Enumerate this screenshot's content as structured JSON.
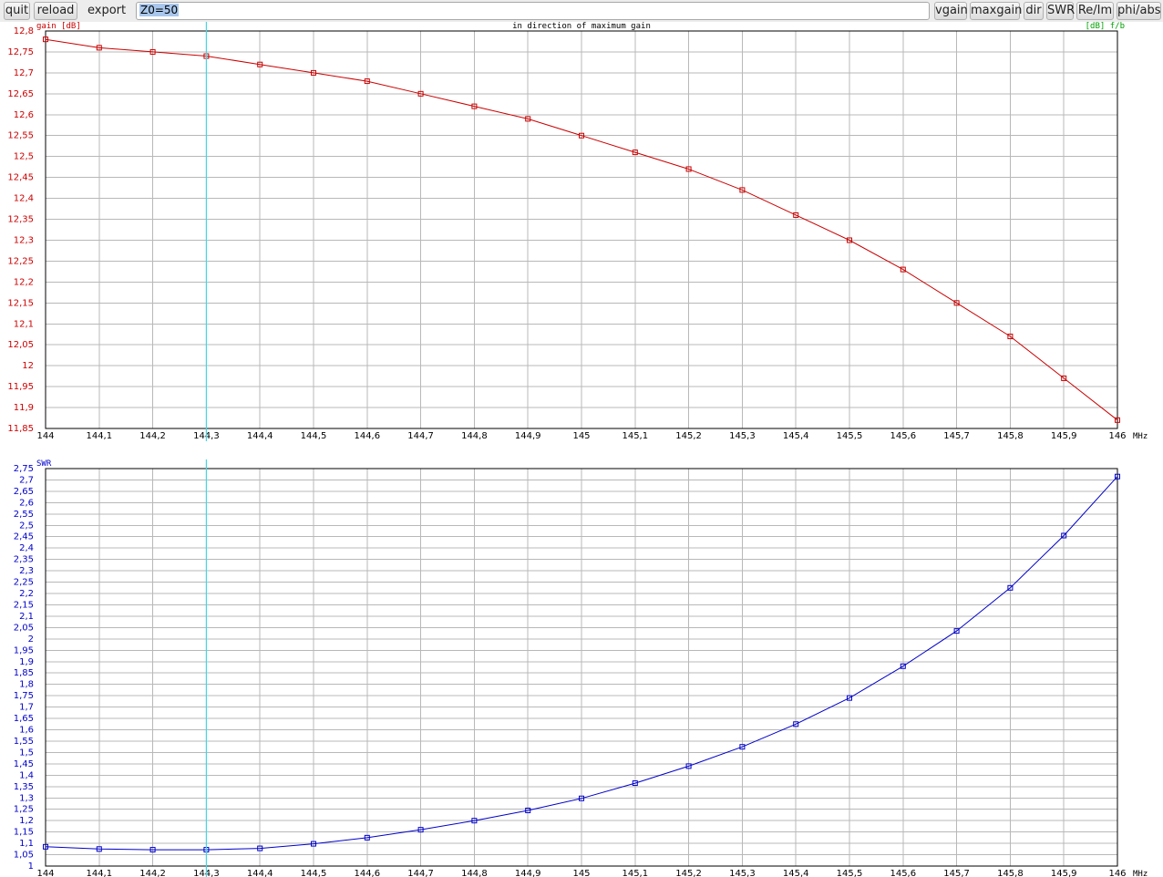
{
  "toolbar": {
    "quit_label": "quit",
    "reload_label": "reload",
    "export_label": "export",
    "z0_value": "Z0=50",
    "vgain_label": "vgain",
    "maxgain_label": "maxgain",
    "dir_label": "dir",
    "swr_label": "SWR",
    "reim_label": "Re/Im",
    "phiabs_label": "phi/abs"
  },
  "colors": {
    "gain": "#cc0000",
    "swr": "#0000cc",
    "fb": "#00a000",
    "cursor": "#40d8e8",
    "grid": "#b8b8b8"
  },
  "cursor_mhz": 144.3,
  "x_tick_labels": [
    "144",
    "144,1",
    "144,2",
    "144,3",
    "144,4",
    "144,5",
    "144,6",
    "144,7",
    "144,8",
    "144,9",
    "145",
    "145,1",
    "145,2",
    "145,3",
    "145,4",
    "145,5",
    "145,6",
    "145,7",
    "145,8",
    "145,9",
    "146"
  ],
  "x_unit": "MHz",
  "chart_data": [
    {
      "type": "line",
      "title": "in direction of maximum gain",
      "ylabel": "gain [dB]",
      "y2label": "[dB] f/b",
      "xlabel": "MHz",
      "xlim": [
        144,
        146
      ],
      "ylim": [
        11.85,
        12.8
      ],
      "ystep": 0.05,
      "grid": true,
      "y_tick_labels": [
        "12,8",
        "12,75",
        "12,7",
        "12,65",
        "12,6",
        "12,55",
        "12,5",
        "12,45",
        "12,4",
        "12,35",
        "12,3",
        "12,25",
        "12,2",
        "12,15",
        "12,1",
        "12,05",
        "12",
        "11,95",
        "11,9",
        "11,85"
      ],
      "x": [
        144,
        144.1,
        144.2,
        144.3,
        144.4,
        144.5,
        144.6,
        144.7,
        144.8,
        144.9,
        145,
        145.1,
        145.2,
        145.3,
        145.4,
        145.5,
        145.6,
        145.7,
        145.8,
        145.9,
        146
      ],
      "series": [
        {
          "name": "gain [dB]",
          "values": [
            12.78,
            12.76,
            12.75,
            12.74,
            12.72,
            12.7,
            12.68,
            12.65,
            12.62,
            12.59,
            12.55,
            12.51,
            12.47,
            12.42,
            12.36,
            12.3,
            12.23,
            12.15,
            12.07,
            11.97,
            11.87
          ]
        }
      ]
    },
    {
      "type": "line",
      "ylabel": "SWR",
      "xlabel": "MHz",
      "xlim": [
        144,
        146
      ],
      "ylim": [
        1,
        2.75
      ],
      "ystep": 0.05,
      "grid": true,
      "y_tick_labels": [
        "2,75",
        "2,7",
        "2,65",
        "2,6",
        "2,55",
        "2,5",
        "2,45",
        "2,4",
        "2,35",
        "2,3",
        "2,25",
        "2,2",
        "2,15",
        "2,1",
        "2,05",
        "2",
        "1,95",
        "1,9",
        "1,85",
        "1,8",
        "1,75",
        "1,7",
        "1,65",
        "1,6",
        "1,55",
        "1,5",
        "1,45",
        "1,4",
        "1,35",
        "1,3",
        "1,25",
        "1,2",
        "1,15",
        "1,1",
        "1,05",
        "1"
      ],
      "x": [
        144,
        144.1,
        144.2,
        144.3,
        144.4,
        144.5,
        144.6,
        144.7,
        144.8,
        144.9,
        145,
        145.1,
        145.2,
        145.3,
        145.4,
        145.5,
        145.6,
        145.7,
        145.8,
        145.9,
        146
      ],
      "series": [
        {
          "name": "SWR",
          "values": [
            1.085,
            1.075,
            1.072,
            1.072,
            1.078,
            1.098,
            1.125,
            1.16,
            1.2,
            1.245,
            1.298,
            1.365,
            1.44,
            1.525,
            1.625,
            1.74,
            1.88,
            2.035,
            2.225,
            2.455,
            2.715
          ]
        }
      ]
    }
  ]
}
